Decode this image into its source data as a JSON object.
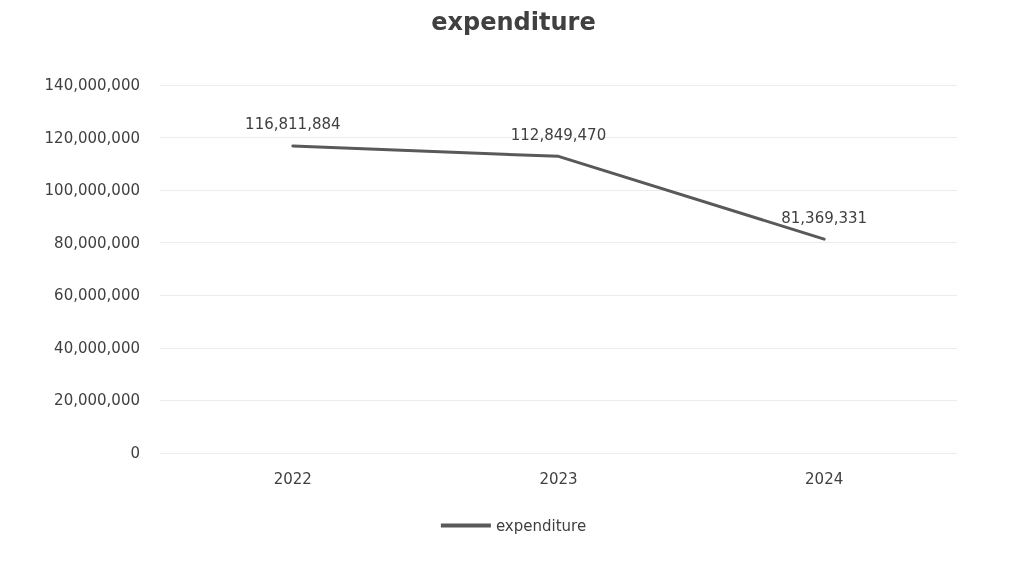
{
  "chart_data": {
    "type": "line",
    "title": "expenditure",
    "categories": [
      "2022",
      "2023",
      "2024"
    ],
    "series": [
      {
        "name": "expenditure",
        "color": "#595959",
        "values": [
          116811884,
          112849470,
          81369331
        ],
        "value_labels": [
          "116,811,884",
          "112,849,470",
          "81,369,331"
        ]
      }
    ],
    "ylim": [
      0,
      140000000
    ],
    "yticks": [
      0,
      {
        "value": 20000000,
        "label": "20,000,000"
      },
      {
        "value": 40000000,
        "label": "40,000,000"
      },
      {
        "value": 60000000,
        "label": "60,000,000"
      },
      {
        "value": 80000000,
        "label": "80,000,000"
      },
      {
        "value": 100000000,
        "label": "100,000,000"
      },
      {
        "value": 120000000,
        "label": "120,000,000"
      },
      {
        "value": 140000000,
        "label": "140,000,000"
      }
    ],
    "grid": "y",
    "legend": "bottom",
    "marker": "none"
  }
}
